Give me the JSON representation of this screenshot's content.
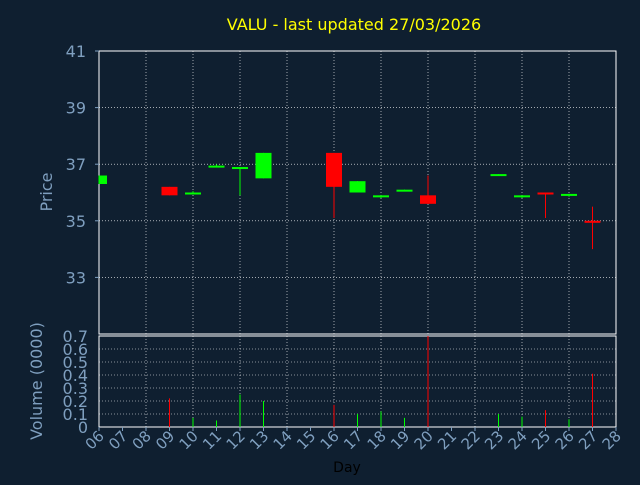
{
  "colors": {
    "background": "#0f1f30",
    "title": "#ffff00",
    "axis_text": "#7f9fbf",
    "grid": "#ffffff",
    "up": "#00ff00",
    "down": "#ff0000",
    "day_label": "#000000"
  },
  "chart_data": [
    {
      "type": "candlestick",
      "title": "VALU - last updated 27/03/2026",
      "ylabel": "Price",
      "ylim": [
        31,
        41
      ],
      "yticks": [
        "33",
        "35",
        "37",
        "39",
        "41"
      ],
      "grid": true,
      "series": [
        {
          "day": "06",
          "open": 36.3,
          "high": 36.6,
          "low": 36.3,
          "close": 36.6
        },
        {
          "day": "09",
          "open": 36.2,
          "high": 36.2,
          "low": 35.9,
          "close": 35.9
        },
        {
          "day": "10",
          "open": 35.95,
          "high": 36.05,
          "low": 35.95,
          "close": 36.0
        },
        {
          "day": "11",
          "open": 36.95,
          "high": 37.0,
          "low": 36.9,
          "close": 36.95
        },
        {
          "day": "12",
          "open": 36.85,
          "high": 36.9,
          "low": 35.9,
          "close": 36.9
        },
        {
          "day": "13",
          "open": 36.5,
          "high": 37.4,
          "low": 36.5,
          "close": 37.4
        },
        {
          "day": "16",
          "open": 37.4,
          "high": 37.4,
          "low": 35.1,
          "close": 36.2
        },
        {
          "day": "17",
          "open": 36.0,
          "high": 36.4,
          "low": 36.0,
          "close": 36.4
        },
        {
          "day": "18",
          "open": 35.85,
          "high": 35.9,
          "low": 35.8,
          "close": 35.9
        },
        {
          "day": "19",
          "open": 36.05,
          "high": 36.1,
          "low": 36.05,
          "close": 36.1
        },
        {
          "day": "20",
          "open": 35.9,
          "high": 36.6,
          "low": 35.6,
          "close": 35.6
        },
        {
          "day": "23",
          "open": 36.6,
          "high": 36.65,
          "low": 36.6,
          "close": 36.65
        },
        {
          "day": "24",
          "open": 35.85,
          "high": 35.9,
          "low": 35.8,
          "close": 35.9
        },
        {
          "day": "25",
          "open": 36.0,
          "high": 36.0,
          "low": 35.1,
          "close": 35.95
        },
        {
          "day": "26",
          "open": 35.9,
          "high": 35.95,
          "low": 35.85,
          "close": 35.95
        },
        {
          "day": "27",
          "open": 35.0,
          "high": 35.5,
          "low": 34.0,
          "close": 34.95
        }
      ]
    },
    {
      "type": "bar",
      "ylabel": "Volume (0000)",
      "xlabel": "Day",
      "ylim": [
        0,
        0.7
      ],
      "yticks": [
        "0",
        "0.1",
        "0.2",
        "0.3",
        "0.4",
        "0.5",
        "0.6",
        "0.7"
      ],
      "categories": [
        "06",
        "07",
        "08",
        "09",
        "10",
        "11",
        "12",
        "13",
        "14",
        "15",
        "16",
        "17",
        "18",
        "19",
        "20",
        "21",
        "22",
        "23",
        "24",
        "25",
        "26",
        "27",
        "28"
      ],
      "series": [
        {
          "day": "09",
          "value": 0.22,
          "direction": "down"
        },
        {
          "day": "10",
          "value": 0.07,
          "direction": "up"
        },
        {
          "day": "11",
          "value": 0.05,
          "direction": "up"
        },
        {
          "day": "12",
          "value": 0.25,
          "direction": "up"
        },
        {
          "day": "13",
          "value": 0.2,
          "direction": "up"
        },
        {
          "day": "16",
          "value": 0.17,
          "direction": "down"
        },
        {
          "day": "17",
          "value": 0.1,
          "direction": "up"
        },
        {
          "day": "18",
          "value": 0.12,
          "direction": "up"
        },
        {
          "day": "19",
          "value": 0.07,
          "direction": "up"
        },
        {
          "day": "20",
          "value": 0.7,
          "direction": "down"
        },
        {
          "day": "23",
          "value": 0.1,
          "direction": "up"
        },
        {
          "day": "24",
          "value": 0.08,
          "direction": "up"
        },
        {
          "day": "25",
          "value": 0.13,
          "direction": "down"
        },
        {
          "day": "26",
          "value": 0.06,
          "direction": "up"
        },
        {
          "day": "27",
          "value": 0.41,
          "direction": "down"
        }
      ]
    }
  ]
}
